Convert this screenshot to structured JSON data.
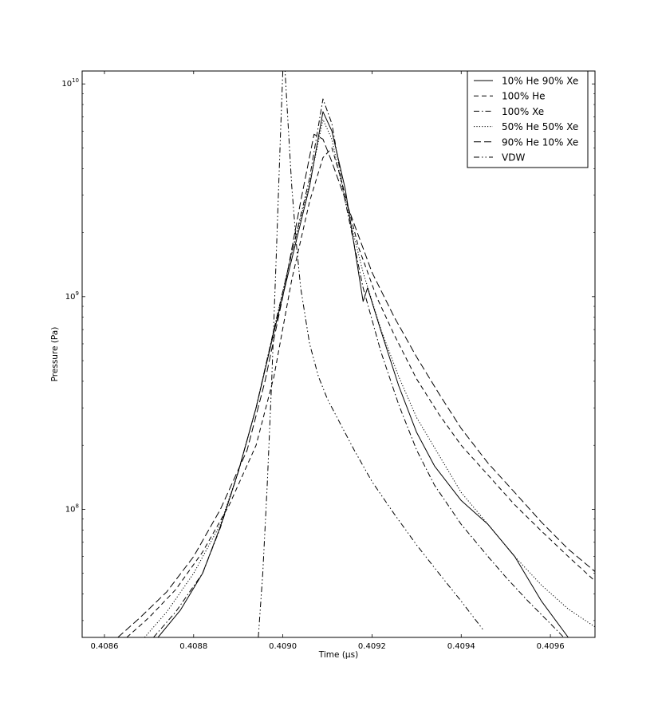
{
  "chart_data": {
    "type": "line",
    "title": "",
    "xlabel": "Time (μs)",
    "ylabel": "Pressure (Pa)",
    "xlim": [
      0.40855,
      0.4097
    ],
    "ylim": [
      25000000,
      11500000000
    ],
    "yscale": "log",
    "grid": false,
    "legend_position": "top-right",
    "x_ticks": [
      {
        "value": 0.4086,
        "label": "0.4086"
      },
      {
        "value": 0.4088,
        "label": "0.4088"
      },
      {
        "value": 0.409,
        "label": "0.4090"
      },
      {
        "value": 0.4092,
        "label": "0.4092"
      },
      {
        "value": 0.4094,
        "label": "0.4094"
      },
      {
        "value": 0.4096,
        "label": "0.4096"
      }
    ],
    "y_ticks": [
      {
        "value": 100000000,
        "base": "10",
        "exp": "8"
      },
      {
        "value": 1000000000,
        "base": "10",
        "exp": "9"
      },
      {
        "value": 10000000000,
        "base": "10",
        "exp": "10"
      }
    ],
    "series": [
      {
        "name": "10% He 90% Xe",
        "dash": "solid",
        "x": [
          0.40872,
          0.40877,
          0.40882,
          0.40886,
          0.4089,
          0.40894,
          0.40898,
          0.40902,
          0.40906,
          0.40909,
          0.40911,
          0.40914,
          0.40918,
          0.40919,
          0.40922,
          0.40926,
          0.4093,
          0.40934,
          0.4094,
          0.40946,
          0.40952,
          0.40958,
          0.40964
        ],
        "y": [
          25000000,
          33500000,
          50000000,
          83000000,
          150000000,
          300000000,
          680000000,
          1500000000,
          3300000000,
          7400000000,
          6000000000,
          3200000000,
          950000000,
          1100000000,
          690000000,
          380000000,
          230000000,
          160000000,
          110000000,
          85000000,
          60000000,
          37000000,
          25000000
        ]
      },
      {
        "name": "100% He",
        "dash": "dashed",
        "x": [
          0.40865,
          0.4087,
          0.40876,
          0.40882,
          0.40888,
          0.40894,
          0.40898,
          0.40902,
          0.40906,
          0.40909,
          0.40911,
          0.40913,
          0.40917,
          0.40921,
          0.40925,
          0.4093,
          0.40935,
          0.4094,
          0.40946,
          0.40952,
          0.40958,
          0.40964,
          0.4097
        ],
        "y": [
          25000000,
          31000000,
          42000000,
          63000000,
          105000000,
          200000000,
          420000000,
          1200000000,
          2800000000,
          4500000000,
          5000000000,
          3600000000,
          1700000000,
          1000000000,
          660000000,
          410000000,
          280000000,
          200000000,
          145000000,
          105000000,
          79000000,
          60000000,
          46000000
        ]
      },
      {
        "name": "100% Xe",
        "dash": "dashdot",
        "x": [
          0.40871,
          0.40876,
          0.40882,
          0.40886,
          0.4089,
          0.40894,
          0.40898,
          0.40902,
          0.40906,
          0.40909,
          0.40911,
          0.40914,
          0.40918,
          0.40922,
          0.40926,
          0.4093,
          0.40934,
          0.4094,
          0.40946,
          0.4095,
          0.40955,
          0.4096,
          0.40963
        ],
        "y": [
          25000000,
          33000000,
          50000000,
          82000000,
          150000000,
          300000000,
          700000000,
          1600000000,
          3600000000,
          8500000000,
          6500000000,
          2800000000,
          1100000000,
          550000000,
          310000000,
          190000000,
          130000000,
          85000000,
          60000000,
          48000000,
          37000000,
          29000000,
          25000000
        ]
      },
      {
        "name": "50% He 50% Xe",
        "dash": "dotted",
        "x": [
          0.40869,
          0.40874,
          0.4088,
          0.40886,
          0.4089,
          0.40894,
          0.40898,
          0.40902,
          0.40906,
          0.40909,
          0.40911,
          0.40914,
          0.40918,
          0.40922,
          0.40926,
          0.4093,
          0.40935,
          0.4094,
          0.40946,
          0.40952,
          0.40958,
          0.40964,
          0.4097
        ],
        "y": [
          25000000,
          33000000,
          50000000,
          85000000,
          150000000,
          300000000,
          700000000,
          1600000000,
          3400000000,
          6800000000,
          5500000000,
          2800000000,
          1300000000,
          700000000,
          420000000,
          270000000,
          180000000,
          120000000,
          85000000,
          60000000,
          44000000,
          34000000,
          28000000
        ]
      },
      {
        "name": "90% He 10% Xe",
        "dash": "longdash",
        "x": [
          0.40863,
          0.40868,
          0.40874,
          0.4088,
          0.40886,
          0.40892,
          0.40896,
          0.409,
          0.40904,
          0.40907,
          0.40909,
          0.40911,
          0.40915,
          0.4092,
          0.40925,
          0.4093,
          0.40935,
          0.4094,
          0.40946,
          0.40952,
          0.40958,
          0.40964,
          0.4097
        ],
        "y": [
          25000000,
          31000000,
          41000000,
          60000000,
          100000000,
          190000000,
          400000000,
          1000000000,
          2800000000,
          5800000000,
          5500000000,
          4300000000,
          2500000000,
          1300000000,
          800000000,
          520000000,
          350000000,
          240000000,
          165000000,
          120000000,
          87000000,
          65000000,
          51000000
        ]
      },
      {
        "name": "VDW",
        "dash": "dashdotdot",
        "x": [
          0.408945,
          0.408955,
          0.408965,
          0.408975,
          0.408985,
          0.408995,
          0.409,
          0.409005,
          0.40901,
          0.40902,
          0.40903,
          0.40904,
          0.40906,
          0.40908,
          0.4091,
          0.40913,
          0.40916,
          0.4092,
          0.40925,
          0.4093,
          0.40935,
          0.4094,
          0.40945
        ],
        "y": [
          25000000,
          50000000,
          130000000,
          400000000,
          1500000000,
          6000000000,
          11500000000,
          11500000000,
          7500000000,
          3300000000,
          1800000000,
          1100000000,
          600000000,
          420000000,
          330000000,
          250000000,
          190000000,
          135000000,
          95000000,
          68000000,
          50000000,
          37000000,
          27000000
        ]
      }
    ]
  }
}
